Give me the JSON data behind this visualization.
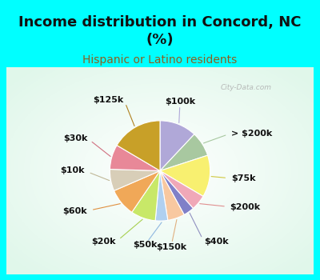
{
  "title": "Income distribution in Concord, NC\n(%)",
  "subtitle": "Hispanic or Latino residents",
  "background_color": "#00FFFF",
  "labels": [
    "$100k",
    "> $200k",
    "$75k",
    "$200k",
    "$40k",
    "$150k",
    "$50k",
    "$20k",
    "$60k",
    "$10k",
    "$30k",
    "$125k"
  ],
  "values": [
    12.0,
    8.0,
    13.5,
    5.0,
    3.5,
    5.5,
    4.0,
    8.0,
    9.0,
    7.0,
    8.0,
    16.5
  ],
  "colors": [
    "#b0a8d8",
    "#a8c8a0",
    "#f8f070",
    "#f0a8b8",
    "#8080c8",
    "#f8c8a0",
    "#b0d0f0",
    "#c8e868",
    "#f0a858",
    "#d8ceb8",
    "#e88898",
    "#c8a028"
  ],
  "title_color": "#111111",
  "subtitle_color": "#8B6020",
  "title_fontsize": 13,
  "subtitle_fontsize": 10,
  "label_fontsize": 8.0,
  "watermark": "City-Data.com"
}
